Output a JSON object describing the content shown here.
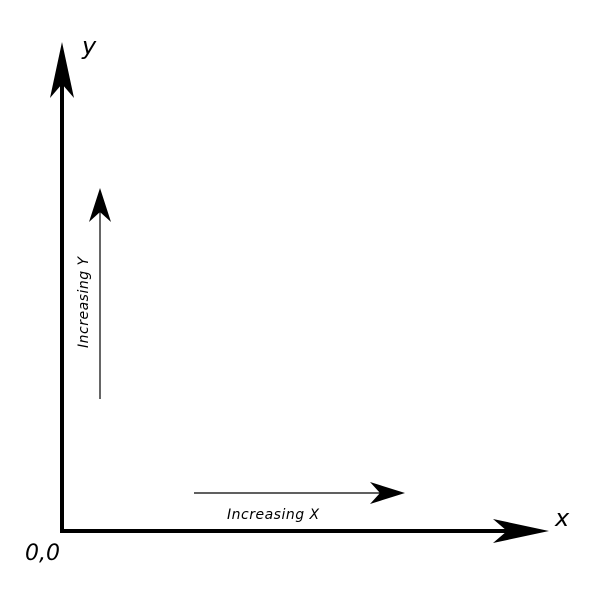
{
  "axes": {
    "x_label": "x",
    "y_label": "y",
    "origin_label": "0,0"
  },
  "annotations": {
    "increasing_x": "Increasing X",
    "increasing_y": "Increasing Y"
  },
  "colors": {
    "stroke": "#000000",
    "background": "#ffffff"
  }
}
